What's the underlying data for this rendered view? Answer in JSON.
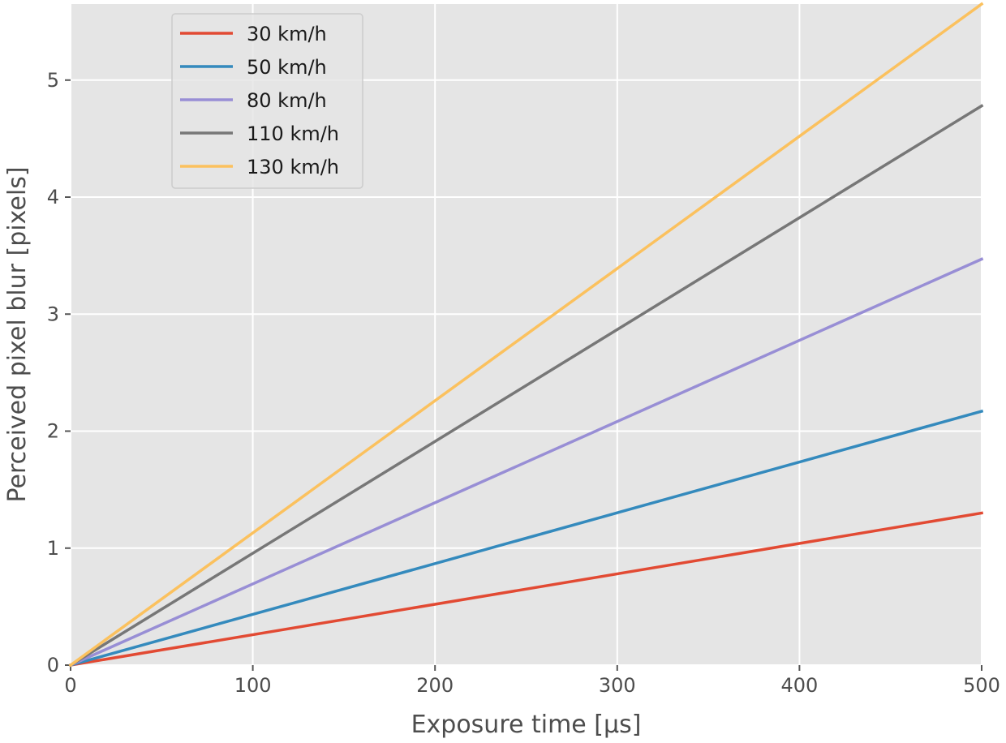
{
  "chart_data": {
    "type": "line",
    "title": "",
    "xlabel": "Exposure time [μs]",
    "ylabel": "Perceived pixel blur [pixels]",
    "xlim": [
      0,
      500
    ],
    "ylim": [
      0,
      5.65
    ],
    "xticks": [
      0,
      100,
      200,
      300,
      400,
      500
    ],
    "yticks": [
      0,
      1,
      2,
      3,
      4,
      5
    ],
    "grid": true,
    "legend_position": "top-left",
    "background_color": "#e5e5e5",
    "grid_color": "#ffffff",
    "series": [
      {
        "name": "30 km/h",
        "color": "#e24a33",
        "x": [
          0,
          500
        ],
        "y": [
          0,
          1.3
        ]
      },
      {
        "name": "50 km/h",
        "color": "#348abd",
        "x": [
          0,
          500
        ],
        "y": [
          0,
          2.17
        ]
      },
      {
        "name": "80 km/h",
        "color": "#988ed5",
        "x": [
          0,
          500
        ],
        "y": [
          0,
          3.47
        ]
      },
      {
        "name": "110 km/h",
        "color": "#777777",
        "x": [
          0,
          500
        ],
        "y": [
          0,
          4.78
        ]
      },
      {
        "name": "130 km/h",
        "color": "#fbc15e",
        "x": [
          0,
          500
        ],
        "y": [
          0,
          5.65
        ]
      }
    ]
  }
}
